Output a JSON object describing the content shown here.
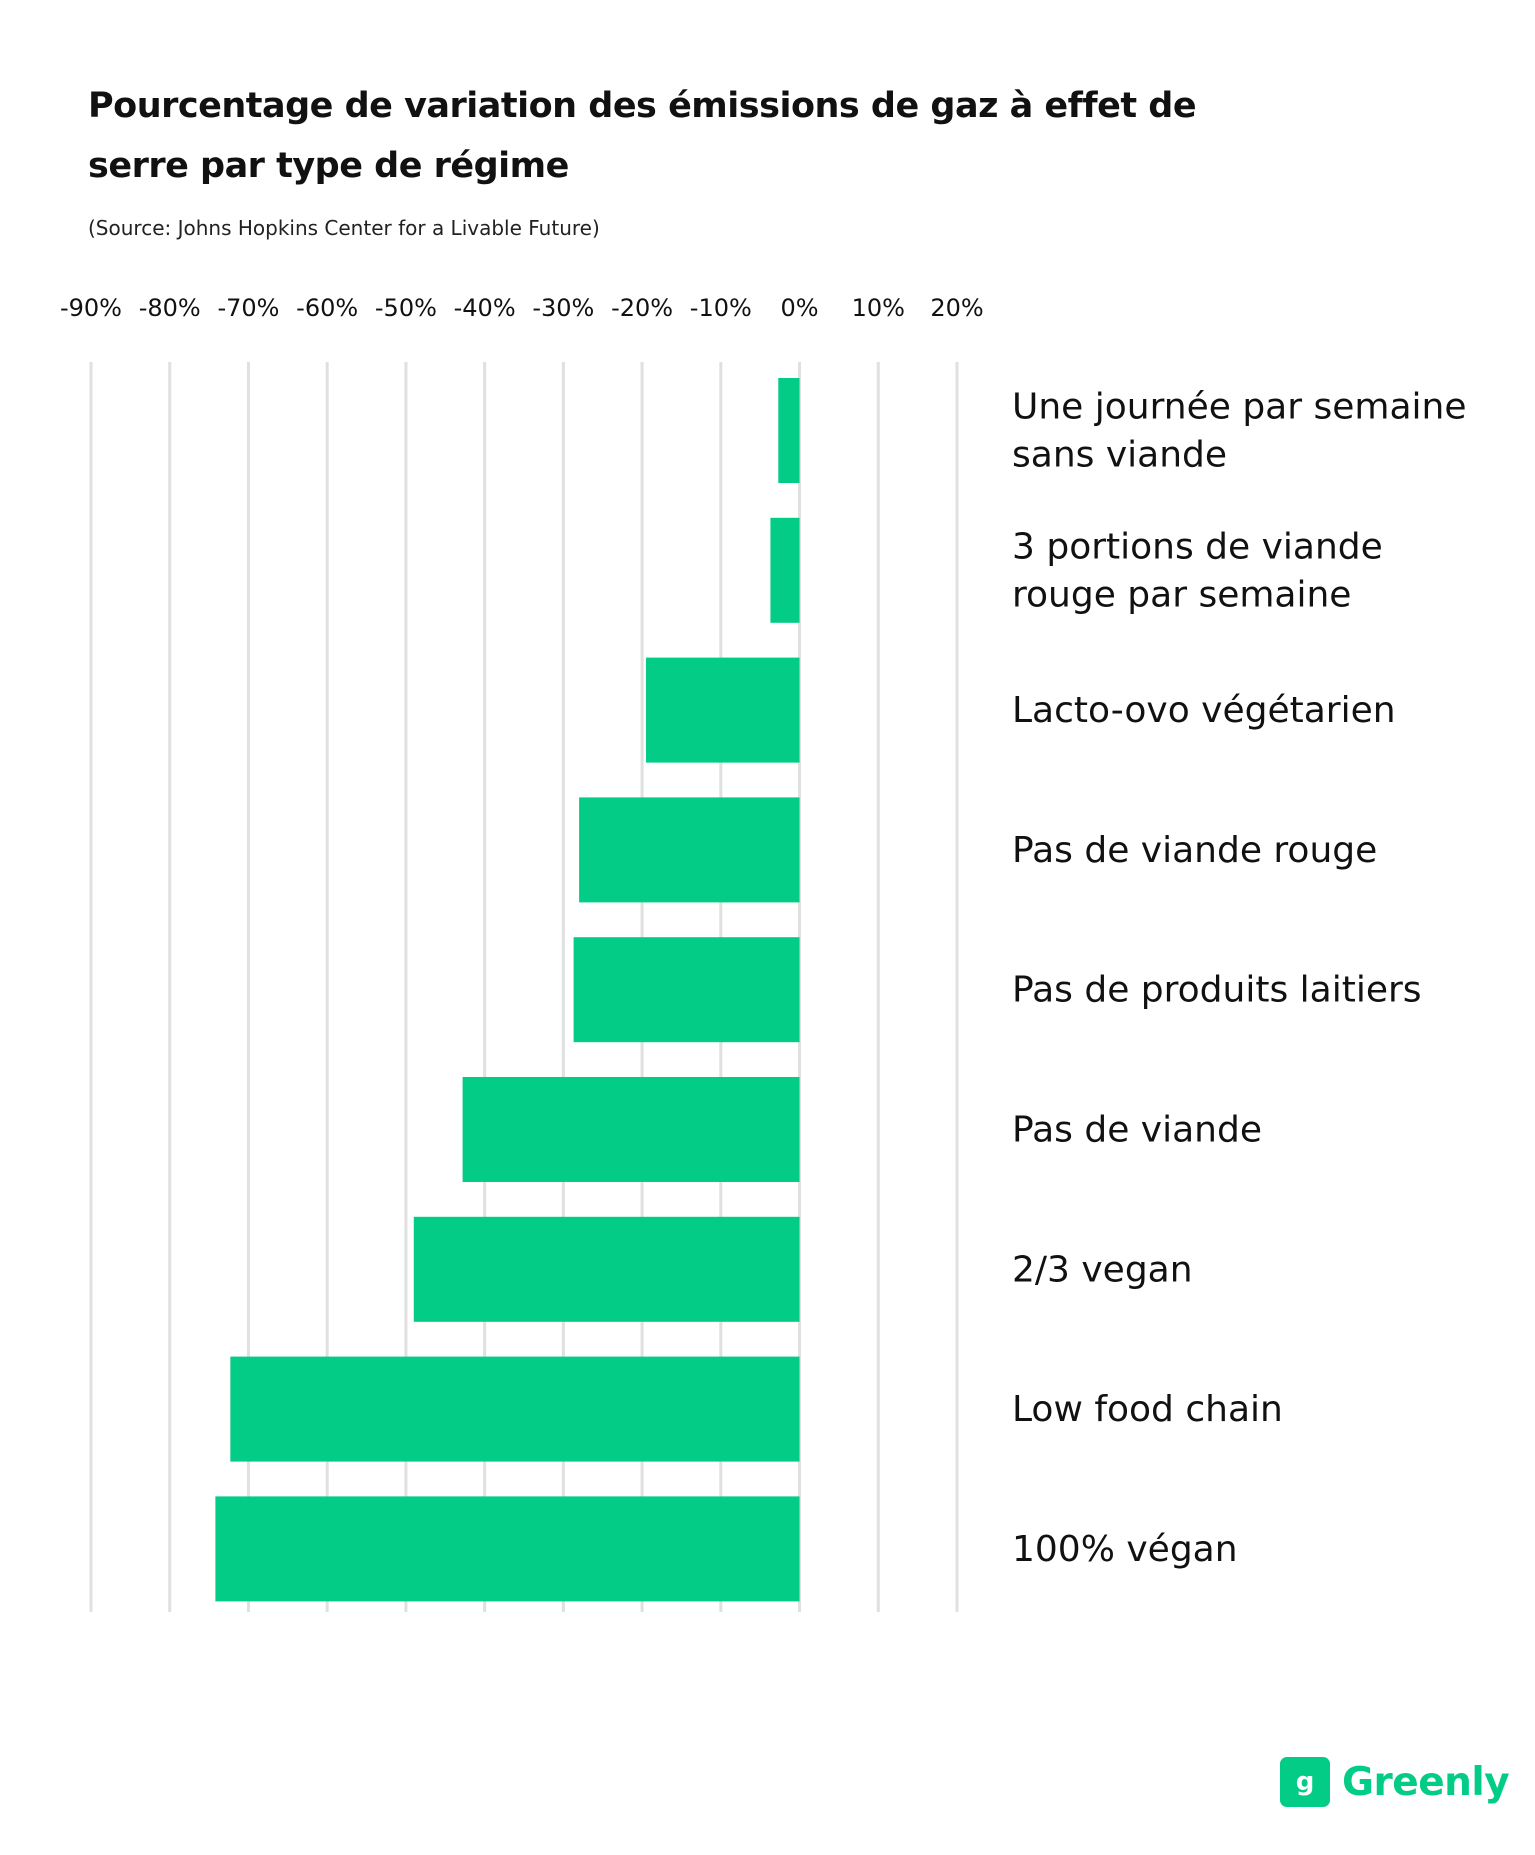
{
  "chart_data": {
    "type": "bar",
    "orientation": "horizontal",
    "title": "Pourcentage de variation des émissions de gaz à effet de serre par type de régime",
    "source": "(Source:  Johns Hopkins Center for a Livable Future)",
    "categories": [
      "Une journée par semaine sans viande",
      "3 portions de viande rouge par semaine",
      "Lacto-ovo végétarien",
      "Pas de viande rouge",
      "Pas de produits laitiers",
      "Pas de viande",
      "2/3 vegan",
      "Low food chain",
      "100% végan"
    ],
    "values": [
      -2.7,
      -3.7,
      -19.5,
      -28,
      -28.7,
      -42.8,
      -49,
      -72.3,
      -74.2
    ],
    "x_ticks": [
      -90,
      -80,
      -70,
      -60,
      -50,
      -40,
      -30,
      -20,
      -10,
      0,
      10,
      20
    ],
    "x_tick_labels": [
      "-90%",
      "-80%",
      "-70%",
      "-60%",
      "-50%",
      "-40%",
      "-30%",
      "-20%",
      "-10%",
      "0%",
      "10%",
      "20%"
    ],
    "xlim": [
      -90,
      20
    ],
    "unit": "%",
    "grid": "vertical",
    "bar_color": "#03cc87",
    "gridline_color": "#e0e0e0"
  },
  "brand": {
    "logo_glyph": "g",
    "name": "Greenly",
    "color": "#03cc87"
  }
}
